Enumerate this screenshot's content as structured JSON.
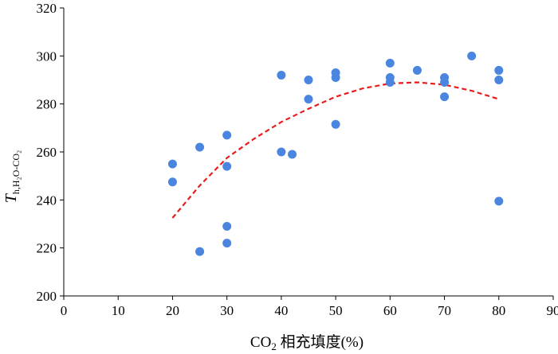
{
  "chart_data": {
    "type": "scatter",
    "title": "",
    "xlabel_main": "CO",
    "xlabel_sub": "2",
    "xlabel_rest": " 相充填度(%)",
    "ylabel_main": "T",
    "ylabel_sub": "h,H₂O-CO₂",
    "xlim": [
      0,
      90
    ],
    "ylim": [
      200,
      320
    ],
    "xticks": [
      0,
      10,
      20,
      30,
      40,
      50,
      60,
      70,
      80,
      90
    ],
    "yticks": [
      200,
      220,
      240,
      260,
      280,
      300,
      320
    ],
    "grid": false,
    "legend": "none",
    "series": [
      {
        "marker_color": "#4a86e0",
        "points": [
          [
            20,
            255
          ],
          [
            20,
            247.5
          ],
          [
            25,
            262
          ],
          [
            25,
            218.5
          ],
          [
            30,
            267
          ],
          [
            30,
            254
          ],
          [
            30,
            229
          ],
          [
            30,
            222
          ],
          [
            40,
            292
          ],
          [
            40,
            260
          ],
          [
            42,
            259
          ],
          [
            45,
            290
          ],
          [
            45,
            282
          ],
          [
            50,
            293
          ],
          [
            50,
            291
          ],
          [
            50,
            271.5
          ],
          [
            60,
            297
          ],
          [
            60,
            291
          ],
          [
            60,
            289
          ],
          [
            65,
            294
          ],
          [
            70,
            291
          ],
          [
            70,
            289
          ],
          [
            70,
            283
          ],
          [
            75,
            300
          ],
          [
            80,
            294
          ],
          [
            80,
            290
          ],
          [
            80,
            239.5
          ]
        ]
      }
    ],
    "trendline": {
      "style": "dashed",
      "color": "#e81c1c",
      "points": [
        [
          20,
          232.5
        ],
        [
          25,
          246
        ],
        [
          30,
          257.5
        ],
        [
          35,
          265.5
        ],
        [
          40,
          272.5
        ],
        [
          45,
          278
        ],
        [
          50,
          283
        ],
        [
          55,
          286.5
        ],
        [
          60,
          288.5
        ],
        [
          65,
          289
        ],
        [
          70,
          288
        ],
        [
          75,
          285.5
        ],
        [
          80,
          282
        ]
      ]
    }
  }
}
